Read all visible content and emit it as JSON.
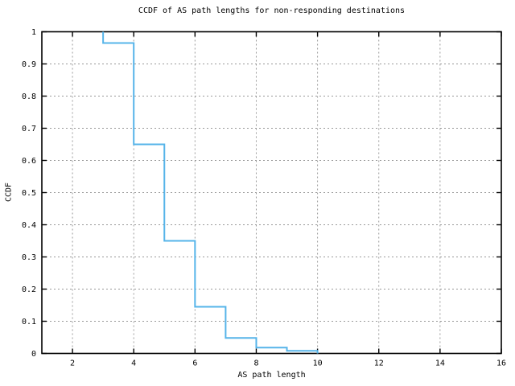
{
  "chart_data": {
    "type": "line",
    "subtype": "ccdf-steps",
    "title": "CCDF of AS path lengths for non-responding destinations",
    "xlabel": "AS path length",
    "ylabel": "CCDF",
    "xlim": [
      1,
      16
    ],
    "ylim": [
      0,
      1
    ],
    "x_ticks": [
      2,
      4,
      6,
      8,
      10,
      12,
      14,
      16
    ],
    "y_ticks": [
      0,
      0.1,
      0.2,
      0.3,
      0.4,
      0.5,
      0.6,
      0.7,
      0.8,
      0.9,
      1
    ],
    "grid": true,
    "legend_position": "none",
    "colors": {
      "line": "#56b4e9",
      "grid": "#999999",
      "border": "#000000",
      "background": "#ffffff"
    },
    "series": [
      {
        "name": "CCDF of AS path length",
        "mode": "steps",
        "points": [
          [
            3,
            1
          ],
          [
            3,
            0.965
          ],
          [
            4,
            0.965
          ],
          [
            4,
            0.65
          ],
          [
            5,
            0.65
          ],
          [
            5,
            0.35
          ],
          [
            6,
            0.35
          ],
          [
            6,
            0.145
          ],
          [
            7,
            0.145
          ],
          [
            7,
            0.048
          ],
          [
            8,
            0.048
          ],
          [
            8,
            0.018
          ],
          [
            9,
            0.018
          ],
          [
            9,
            0.008
          ],
          [
            10,
            0.008
          ],
          [
            10,
            0
          ]
        ]
      }
    ]
  }
}
